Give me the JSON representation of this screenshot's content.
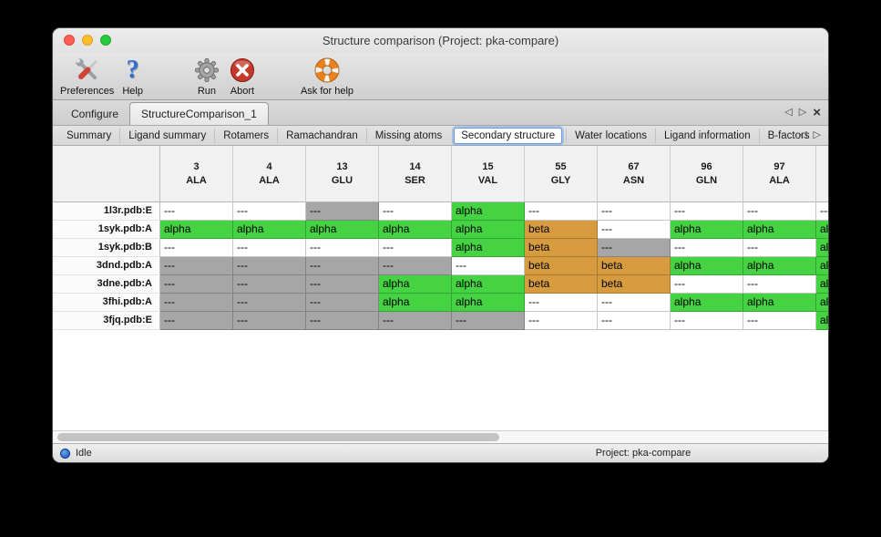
{
  "window": {
    "title": "Structure comparison (Project: pka-compare)"
  },
  "toolbar": {
    "items": [
      {
        "label": "Preferences",
        "icon": "tools"
      },
      {
        "label": "Help",
        "icon": "question"
      },
      {
        "label": "Run",
        "icon": "gear"
      },
      {
        "label": "Abort",
        "icon": "abort"
      },
      {
        "label": "Ask for help",
        "icon": "lifebuoy"
      }
    ]
  },
  "icon_glyphs": {
    "nav_left": "◁",
    "nav_right": "▷",
    "close_tab": "×",
    "question": "?"
  },
  "tabs": {
    "items": [
      {
        "label": "Configure",
        "active": false
      },
      {
        "label": "StructureComparison_1",
        "active": true
      }
    ]
  },
  "subtabs": {
    "active": "Secondary structure",
    "items": [
      "Summary",
      "Ligand summary",
      "Rotamers",
      "Ramachandran",
      "Missing atoms",
      "Secondary structure",
      "Water locations",
      "Ligand information",
      "B-factors"
    ]
  },
  "table": {
    "columns": [
      {
        "num": "3",
        "name": "ALA"
      },
      {
        "num": "4",
        "name": "ALA"
      },
      {
        "num": "13",
        "name": "GLU"
      },
      {
        "num": "14",
        "name": "SER"
      },
      {
        "num": "15",
        "name": "VAL"
      },
      {
        "num": "55",
        "name": "GLY"
      },
      {
        "num": "67",
        "name": "ASN"
      },
      {
        "num": "96",
        "name": "GLN"
      },
      {
        "num": "97",
        "name": "ALA"
      },
      {
        "num": "",
        "name": ""
      }
    ],
    "cell_types": {
      "w": {
        "kind": "blank",
        "text": "---",
        "bg": "#ffffff"
      },
      "g": {
        "kind": "missing",
        "text": "---",
        "bg": "#a6a6a6"
      },
      "a": {
        "kind": "alpha",
        "text": "alpha",
        "bg": "#45d243"
      },
      "b": {
        "kind": "beta",
        "text": "beta",
        "bg": "#d79b40"
      }
    },
    "rows": [
      {
        "label": "1l3r.pdb:E",
        "cells": [
          "w",
          "w",
          "g",
          "w",
          "a",
          "w",
          "w",
          "w",
          "w",
          "w"
        ]
      },
      {
        "label": "1syk.pdb:A",
        "cells": [
          "a",
          "a",
          "a",
          "a",
          "a",
          "b",
          "w",
          "a",
          "a",
          "a"
        ]
      },
      {
        "label": "1syk.pdb:B",
        "cells": [
          "w",
          "w",
          "w",
          "w",
          "a",
          "b",
          "g",
          "w",
          "w",
          "a"
        ]
      },
      {
        "label": "3dnd.pdb:A",
        "cells": [
          "g",
          "g",
          "g",
          "g",
          "w",
          "b",
          "b",
          "a",
          "a",
          "a"
        ]
      },
      {
        "label": "3dne.pdb:A",
        "cells": [
          "g",
          "g",
          "g",
          "a",
          "a",
          "b",
          "b",
          "w",
          "w",
          "a"
        ]
      },
      {
        "label": "3fhi.pdb:A",
        "cells": [
          "g",
          "g",
          "g",
          "a",
          "a",
          "w",
          "w",
          "a",
          "a",
          "a"
        ]
      },
      {
        "label": "3fjq.pdb:E",
        "cells": [
          "g",
          "g",
          "g",
          "g",
          "g",
          "w",
          "w",
          "w",
          "w",
          "a"
        ]
      }
    ]
  },
  "statusbar": {
    "status": "Idle",
    "project": "Project: pka-compare"
  }
}
